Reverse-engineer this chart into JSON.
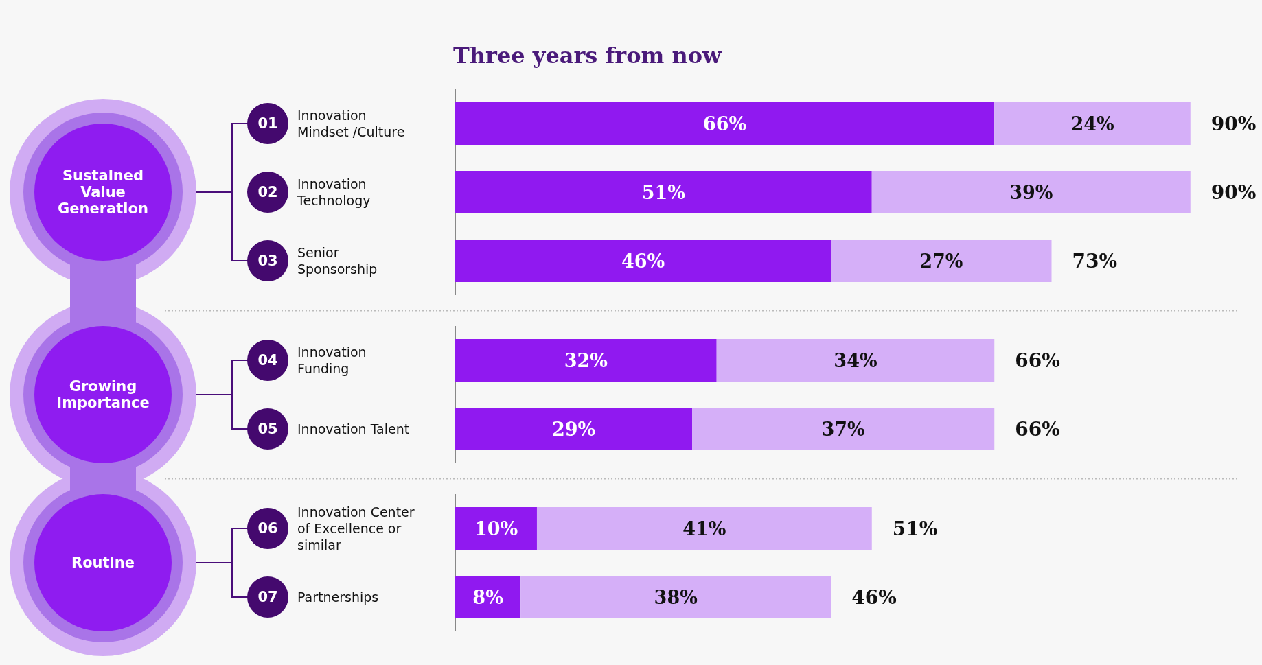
{
  "chart_data": [
    {
      "type": "bar",
      "orientation": "horizontal",
      "stacked": true,
      "tick_labels": "y",
      "title": "Three years from now",
      "ylabel": "Sustained Value Generation",
      "categories": [
        "Innovation Mindset /Culture",
        "Innovation Technology",
        "Senior Sponsorship"
      ],
      "series": [
        {
          "color": "#9019f0",
          "values": [
            66,
            51,
            46
          ],
          "value_labels": [
            "66%",
            "51%",
            "46%"
          ]
        },
        {
          "color": "#d5aff8",
          "values": [
            24,
            39,
            27
          ],
          "value_labels": [
            "24%",
            "39%",
            "27%"
          ]
        }
      ],
      "totals": [
        "90%",
        "90%",
        "73%"
      ],
      "annotations": [
        "01",
        "02",
        "03"
      ]
    },
    {
      "type": "bar",
      "orientation": "horizontal",
      "stacked": true,
      "tick_labels": "y",
      "ylabel": "Growing Importance",
      "categories": [
        "Innovation Funding",
        "Innovation Talent"
      ],
      "series": [
        {
          "color": "#9019f0",
          "values": [
            32,
            29
          ],
          "value_labels": [
            "32%",
            "29%"
          ]
        },
        {
          "color": "#d5aff8",
          "values": [
            34,
            37
          ],
          "value_labels": [
            "34%",
            "37%"
          ]
        }
      ],
      "totals": [
        "66%",
        "66%"
      ],
      "annotations": [
        "04",
        "05"
      ]
    },
    {
      "type": "bar",
      "orientation": "horizontal",
      "stacked": true,
      "tick_labels": "y",
      "ylabel": "Routine",
      "categories": [
        "Innovation Center of Excellence or similar",
        "Partnerships"
      ],
      "series": [
        {
          "color": "#9019f0",
          "values": [
            10,
            8
          ],
          "value_labels": [
            "10%",
            "8%"
          ]
        },
        {
          "color": "#d5aff8",
          "values": [
            41,
            38
          ],
          "value_labels": [
            "41%",
            "38%"
          ]
        }
      ],
      "totals": [
        "51%",
        "46%"
      ],
      "annotations": [
        "06",
        "07"
      ]
    }
  ]
}
